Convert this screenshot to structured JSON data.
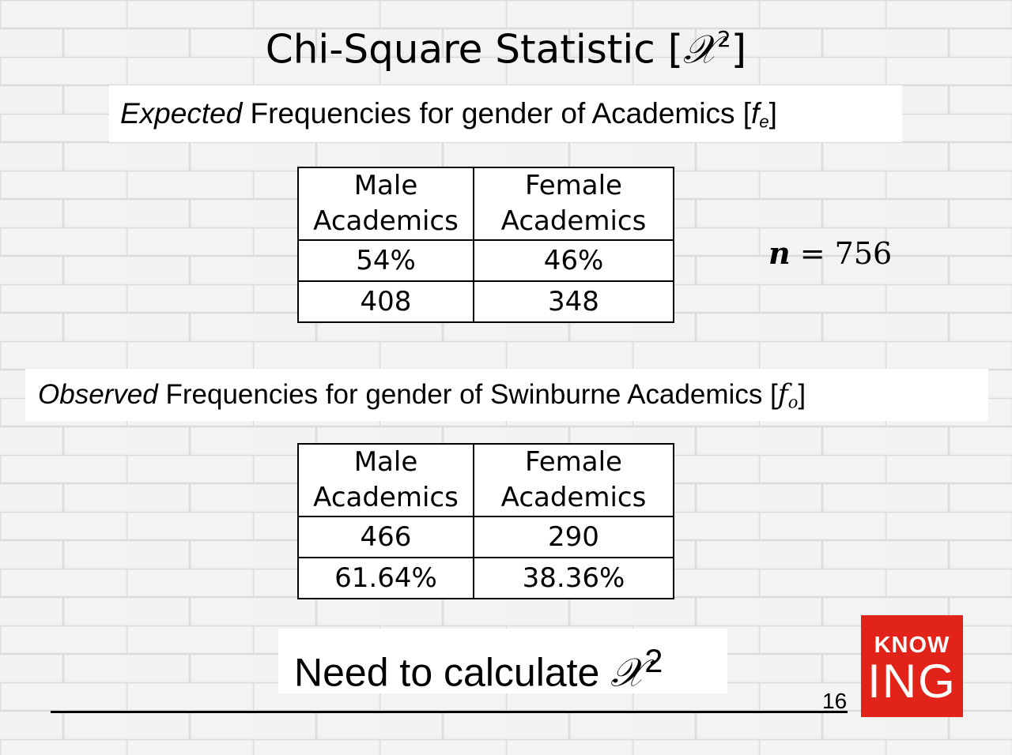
{
  "slide": {
    "title_text": "Chi-Square Statistic [",
    "title_symbol": "𝒳",
    "title_sup": "2",
    "title_close": "]",
    "page_number": "16"
  },
  "expected": {
    "italic_word": "Expected",
    "rest": " Frequencies for gender of Academics [",
    "f": "f",
    "sub": "e",
    "close": "]",
    "table": {
      "headers": [
        "Male Academics",
        "Female Academics"
      ],
      "rows": [
        [
          "54%",
          "46%"
        ],
        [
          "408",
          "348"
        ]
      ]
    }
  },
  "sample_size": {
    "var": "n",
    "rest": " = 756"
  },
  "observed": {
    "italic_word": "Observed",
    "rest": " Frequencies for gender of Swinburne Academics [",
    "f": "f",
    "sub": "o",
    "close": "]",
    "table": {
      "headers": [
        "Male Academics",
        "Female Academics"
      ],
      "rows": [
        [
          "466",
          "290"
        ],
        [
          "61.64%",
          "38.36%"
        ]
      ]
    }
  },
  "need": {
    "text": "Need to calculate ",
    "symbol": "𝒳",
    "sup": "2"
  },
  "logo": {
    "line1": "KNOW",
    "line2": "ING"
  },
  "colors": {
    "logo_bg": "#e2231a",
    "background": "#ececec"
  }
}
